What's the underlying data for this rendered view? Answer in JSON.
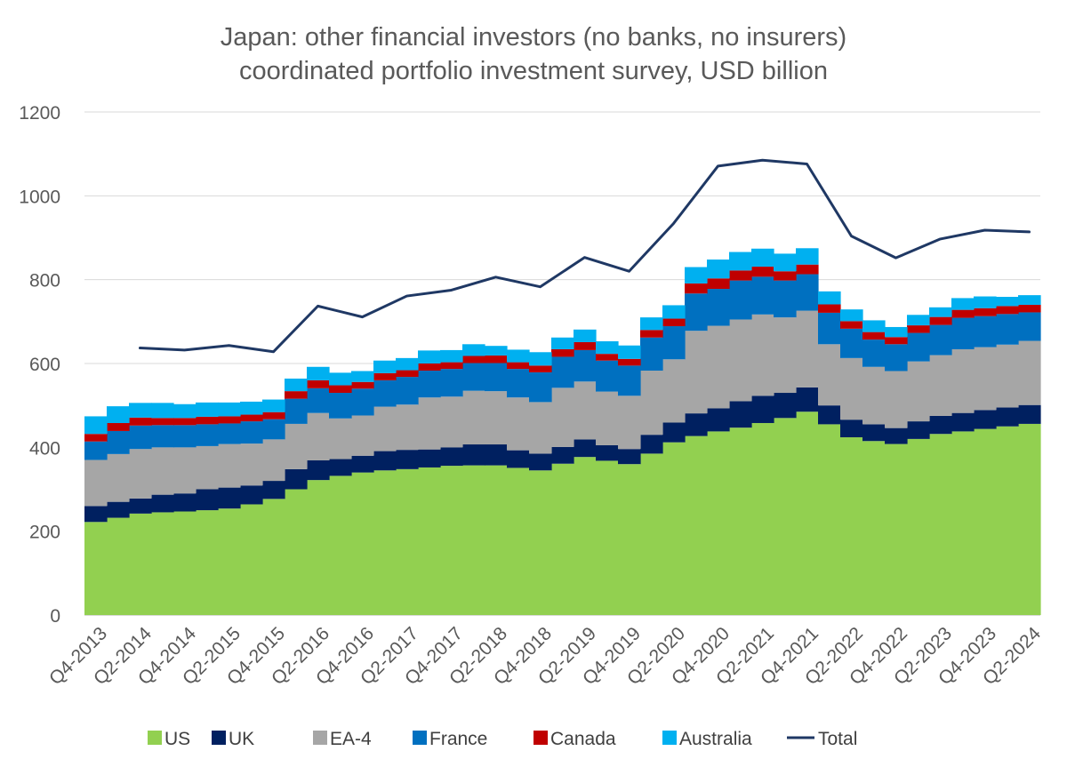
{
  "chart_data": {
    "type": "area",
    "stacked": true,
    "title": "Japan: other financial investors (no banks, no insurers)",
    "subtitle": "coordinated portfolio investment survey, USD billion",
    "xlabel": "",
    "ylabel": "",
    "ylim": [
      0,
      1200
    ],
    "yticks": [
      0,
      200,
      400,
      600,
      800,
      1000,
      1200
    ],
    "grid": true,
    "legend_position": "bottom",
    "x": [
      "Q4-2013",
      "Q1-2014",
      "Q2-2014",
      "Q3-2014",
      "Q4-2014",
      "Q1-2015",
      "Q2-2015",
      "Q3-2015",
      "Q4-2015",
      "Q1-2016",
      "Q2-2016",
      "Q3-2016",
      "Q4-2016",
      "Q1-2017",
      "Q2-2017",
      "Q3-2017",
      "Q4-2017",
      "Q1-2018",
      "Q2-2018",
      "Q3-2018",
      "Q4-2018",
      "Q1-2019",
      "Q2-2019",
      "Q3-2019",
      "Q4-2019",
      "Q1-2020",
      "Q2-2020",
      "Q3-2020",
      "Q4-2020",
      "Q1-2021",
      "Q2-2021",
      "Q3-2021",
      "Q4-2021",
      "Q1-2022",
      "Q2-2022",
      "Q3-2022",
      "Q4-2022",
      "Q1-2023",
      "Q2-2023",
      "Q3-2023",
      "Q4-2023",
      "Q1-2024",
      "Q2-2024"
    ],
    "xtick_labels": [
      "Q4-2013",
      "Q2-2014",
      "Q4-2014",
      "Q2-2015",
      "Q4-2015",
      "Q2-2016",
      "Q4-2016",
      "Q2-2017",
      "Q4-2017",
      "Q2-2018",
      "Q4-2018",
      "Q2-2019",
      "Q4-2019",
      "Q2-2020",
      "Q4-2020",
      "Q2-2021",
      "Q4-2021",
      "Q2-2022",
      "Q4-2022",
      "Q2-2023",
      "Q4-2023",
      "Q2-2024"
    ],
    "series": [
      {
        "name": "US",
        "color": "#92d050",
        "values": [
          222,
          232,
          242,
          245,
          247,
          250,
          254,
          264,
          277,
          300,
          322,
          332,
          340,
          345,
          348,
          352,
          356,
          357,
          357,
          351,
          345,
          361,
          377,
          368,
          360,
          385,
          412,
          427,
          438,
          447,
          458,
          470,
          485,
          455,
          424,
          415,
          408,
          420,
          432,
          438,
          444,
          450,
          456
        ]
      },
      {
        "name": "UK",
        "color": "#002060",
        "values": [
          38,
          38,
          36,
          42,
          43,
          50,
          50,
          45,
          43,
          48,
          47,
          40,
          40,
          46,
          46,
          43,
          44,
          50,
          50,
          42,
          40,
          40,
          42,
          37,
          36,
          45,
          47,
          54,
          55,
          63,
          65,
          60,
          58,
          45,
          42,
          40,
          38,
          42,
          43,
          44,
          45,
          45,
          45
        ]
      },
      {
        "name": "EA-4",
        "color": "#a6a6a6",
        "values": [
          110,
          114,
          118,
          113,
          110,
          103,
          104,
          100,
          99,
          108,
          113,
          97,
          96,
          106,
          108,
          124,
          121,
          128,
          127,
          126,
          123,
          141,
          138,
          128,
          127,
          153,
          151,
          197,
          197,
          195,
          194,
          180,
          183,
          146,
          147,
          137,
          136,
          143,
          145,
          152,
          150,
          150,
          153
        ]
      },
      {
        "name": "France",
        "color": "#0070c0",
        "values": [
          44,
          55,
          56,
          53,
          53,
          52,
          49,
          53,
          48,
          60,
          59,
          61,
          64,
          63,
          66,
          64,
          66,
          66,
          67,
          68,
          71,
          74,
          75,
          74,
          72,
          79,
          79,
          89,
          88,
          93,
          90,
          88,
          87,
          75,
          70,
          65,
          64,
          68,
          72,
          75,
          74,
          73,
          68
        ]
      },
      {
        "name": "Canada",
        "color": "#c00000",
        "values": [
          18,
          19,
          19,
          17,
          17,
          18,
          17,
          16,
          17,
          18,
          19,
          18,
          16,
          17,
          16,
          17,
          16,
          17,
          18,
          16,
          16,
          18,
          19,
          16,
          16,
          18,
          18,
          24,
          25,
          24,
          24,
          22,
          23,
          20,
          18,
          18,
          17,
          18,
          19,
          19,
          19,
          19,
          18
        ]
      },
      {
        "name": "Australia",
        "color": "#00b0f0",
        "values": [
          42,
          40,
          35,
          36,
          33,
          34,
          33,
          31,
          30,
          30,
          32,
          30,
          26,
          30,
          29,
          31,
          29,
          28,
          23,
          30,
          32,
          28,
          30,
          30,
          32,
          30,
          32,
          39,
          45,
          44,
          43,
          42,
          39,
          31,
          28,
          28,
          24,
          25,
          23,
          28,
          28,
          22,
          23
        ]
      },
      {
        "name": "Total",
        "color": "#1f3864",
        "kind": "line",
        "values": [
          null,
          null,
          637,
          null,
          632,
          null,
          643,
          null,
          628,
          null,
          737,
          null,
          711,
          null,
          761,
          null,
          775,
          null,
          806,
          null,
          783,
          null,
          853,
          null,
          820,
          null,
          934,
          null,
          1071,
          null,
          1085,
          null,
          1076,
          null,
          904,
          null,
          852,
          null,
          897,
          null,
          918,
          null,
          914
        ]
      }
    ]
  }
}
